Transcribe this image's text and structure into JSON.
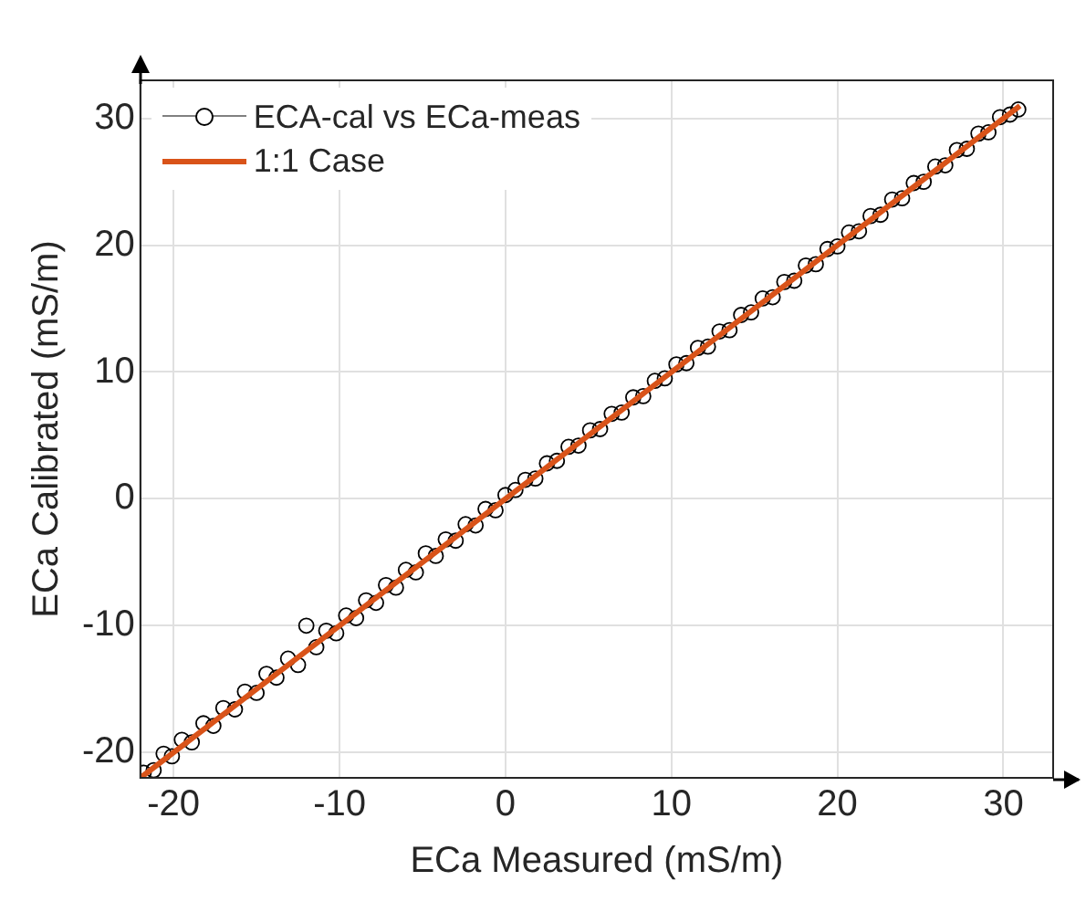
{
  "chart_data": {
    "type": "scatter",
    "xlabel": "ECa Measured (mS/m)",
    "ylabel": "ECa Calibrated (mS/m)",
    "xlim": [
      -22,
      33
    ],
    "ylim": [
      -22,
      33
    ],
    "xticks": [
      -20,
      -10,
      0,
      10,
      20,
      30
    ],
    "yticks": [
      -20,
      -10,
      0,
      10,
      20,
      30
    ],
    "grid": true,
    "legend": "top left",
    "marker": "circle",
    "series": [
      {
        "name": "ECA-cal vs ECa-meas",
        "color": "#000000",
        "x": [
          -21.8,
          -21.2,
          -20.6,
          -20.1,
          -19.5,
          -18.9,
          -18.2,
          -17.6,
          -17.0,
          -16.3,
          -15.7,
          -15.0,
          -14.4,
          -13.8,
          -13.1,
          -12.5,
          -12.0,
          -11.4,
          -10.8,
          -10.2,
          -9.6,
          -9.0,
          -8.4,
          -7.8,
          -7.2,
          -6.6,
          -6.0,
          -5.4,
          -4.8,
          -4.2,
          -3.6,
          -3.0,
          -2.4,
          -1.8,
          -1.2,
          -0.6,
          0.0,
          0.6,
          1.2,
          1.8,
          2.5,
          3.1,
          3.8,
          4.4,
          5.1,
          5.7,
          6.4,
          7.0,
          7.7,
          8.3,
          9.0,
          9.6,
          10.3,
          10.9,
          11.6,
          12.2,
          12.9,
          13.5,
          14.2,
          14.8,
          15.5,
          16.1,
          16.8,
          17.4,
          18.1,
          18.7,
          19.4,
          20.0,
          20.7,
          21.3,
          22.0,
          22.6,
          23.3,
          23.9,
          24.6,
          25.2,
          25.9,
          26.5,
          27.2,
          27.8,
          28.5,
          29.1,
          29.8,
          30.4,
          30.9
        ],
        "values": [
          -21.6,
          -21.4,
          -20.1,
          -20.3,
          -19.0,
          -19.2,
          -17.7,
          -17.9,
          -16.5,
          -16.6,
          -15.2,
          -15.3,
          -13.8,
          -14.1,
          -12.6,
          -13.1,
          -10.0,
          -11.7,
          -10.4,
          -10.6,
          -9.2,
          -9.4,
          -8.0,
          -8.2,
          -6.8,
          -7.0,
          -5.6,
          -5.8,
          -4.3,
          -4.5,
          -3.2,
          -3.3,
          -2.0,
          -2.1,
          -0.8,
          -0.9,
          0.3,
          0.7,
          1.5,
          1.6,
          2.8,
          3.0,
          4.1,
          4.2,
          5.4,
          5.5,
          6.7,
          6.8,
          8.0,
          8.1,
          9.3,
          9.5,
          10.6,
          10.7,
          11.9,
          12.0,
          13.2,
          13.3,
          14.5,
          14.7,
          15.8,
          15.9,
          17.1,
          17.2,
          18.4,
          18.5,
          19.7,
          19.9,
          21.0,
          21.1,
          22.3,
          22.4,
          23.6,
          23.7,
          24.9,
          25.0,
          26.2,
          26.3,
          27.5,
          27.6,
          28.8,
          28.9,
          30.1,
          30.3,
          30.7
        ]
      },
      {
        "name": "1:1 Case",
        "type": "line",
        "color": "#d95319",
        "marker": "none",
        "x": [
          -22,
          31
        ],
        "values": [
          -22,
          31
        ]
      }
    ]
  }
}
